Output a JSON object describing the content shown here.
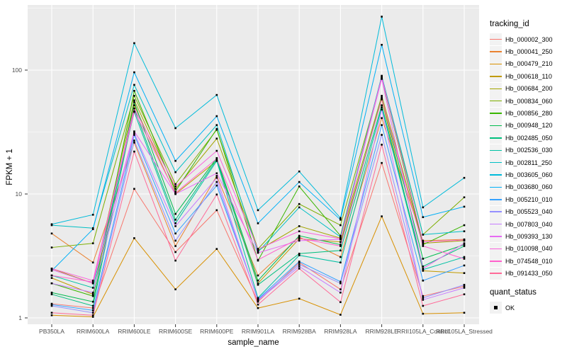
{
  "figure": {
    "background": "#FFFFFF",
    "panel_background": "#EBEBEB",
    "grid_color": "#FFFFFF",
    "axis_text_color": "#4D4D4D",
    "tick_color": "#333333",
    "legend_key_fill": "#F2F2F2"
  },
  "chart_data": {
    "type": "line",
    "title": "",
    "xlabel": "sample_name",
    "ylabel": "FPKM + 1",
    "y_scale": "log10",
    "y_ticks": [
      {
        "label": "1",
        "log10": 0
      },
      {
        "label": "10",
        "log10": 1
      },
      {
        "label": "100",
        "log10": 2
      }
    ],
    "y_minor_log10": [
      0.5,
      1.5,
      2.5
    ],
    "ylim_log10": [
      -0.051,
      2.503
    ],
    "grid": "major-and-minor",
    "legend_position": "right",
    "marker": {
      "shape": "square",
      "color": "#000000",
      "size": 2.6
    },
    "categories": [
      "PB350LA",
      "RRIM600LA",
      "RRIM600LE",
      "RRIM600SE",
      "RRIM600PE",
      "RRIM901LA",
      "RRIM928BA",
      "RRIM928LA",
      "RRIM928LE",
      "RRII105LA_Control",
      "RRII105LA_Stressed"
    ],
    "series": [
      {
        "name": "Hb_000002_300",
        "color": "#F8766D",
        "values": [
          1.3,
          1.2,
          11,
          3.4,
          7.4,
          1.35,
          2.8,
          1.7,
          17.8,
          1.5,
          1.8
        ]
      },
      {
        "name": "Hb_000041_250",
        "color": "#EA8331",
        "values": [
          4.8,
          2.8,
          26,
          3.8,
          14,
          2.2,
          4.5,
          3.1,
          41,
          4.2,
          4.3
        ]
      },
      {
        "name": "Hb_000479_210",
        "color": "#D89000",
        "values": [
          1.05,
          1.02,
          4.4,
          1.7,
          3.6,
          1.2,
          1.43,
          1.06,
          6.6,
          1.08,
          1.1
        ]
      },
      {
        "name": "Hb_000618_110",
        "color": "#C09B00",
        "values": [
          2.1,
          1.55,
          52,
          10,
          18.5,
          1.9,
          4.35,
          4.1,
          58,
          2.4,
          2.3
        ]
      },
      {
        "name": "Hb_000684_200",
        "color": "#A3A500",
        "values": [
          2.5,
          1.9,
          57,
          11,
          28,
          3.5,
          5.5,
          4.4,
          62,
          4.0,
          4.2
        ]
      },
      {
        "name": "Hb_000834_060",
        "color": "#7CAE00",
        "values": [
          3.7,
          4.0,
          62,
          12,
          33,
          3.6,
          8.3,
          5.6,
          85,
          4.7,
          9.4
        ]
      },
      {
        "name": "Hb_000856_280",
        "color": "#39B600",
        "values": [
          1.9,
          1.5,
          68,
          10.5,
          33.5,
          2.9,
          11.5,
          4.6,
          87,
          3.9,
          5.6
        ]
      },
      {
        "name": "Hb_000948_120",
        "color": "#00BB4E",
        "values": [
          1.6,
          1.35,
          55,
          6.9,
          19.5,
          2.0,
          4.6,
          3.9,
          60,
          3.0,
          3.9
        ]
      },
      {
        "name": "Hb_002485_050",
        "color": "#00BF7D",
        "values": [
          1.55,
          1.25,
          49,
          6.2,
          19,
          1.85,
          3.3,
          3.5,
          52,
          2.6,
          3.8
        ]
      },
      {
        "name": "Hb_002536_030",
        "color": "#00C1A3",
        "values": [
          2.2,
          1.75,
          46,
          5.8,
          18.5,
          1.45,
          3.2,
          2.8,
          50,
          2.45,
          3.1
        ]
      },
      {
        "name": "Hb_002811_250",
        "color": "#00BFC4",
        "values": [
          5.6,
          5.3,
          76,
          15,
          36,
          3.4,
          7.8,
          4.5,
          90,
          4.7,
          5.0
        ]
      },
      {
        "name": "Hb_003605_060",
        "color": "#00BBDA",
        "values": [
          5.7,
          6.8,
          165,
          34,
          63,
          7.4,
          15.2,
          6.4,
          270,
          7.8,
          13.5
        ]
      },
      {
        "name": "Hb_003680_060",
        "color": "#00B0F6",
        "values": [
          2.4,
          5.2,
          96,
          18.5,
          42.5,
          5.8,
          12.5,
          6.2,
          160,
          6.5,
          7.9
        ]
      },
      {
        "name": "Hb_005210_010",
        "color": "#35A2FF",
        "values": [
          1.28,
          1.15,
          30,
          4.8,
          11.7,
          1.42,
          2.85,
          1.96,
          36,
          2.0,
          2.65
        ]
      },
      {
        "name": "Hb_005523_040",
        "color": "#9590FF",
        "values": [
          1.25,
          1.1,
          27,
          4.2,
          12.5,
          1.4,
          2.7,
          1.9,
          30,
          1.45,
          1.85
        ]
      },
      {
        "name": "Hb_007803_040",
        "color": "#C77CFF",
        "values": [
          1.9,
          1.6,
          31,
          5.5,
          13.5,
          1.38,
          2.6,
          1.6,
          48,
          1.4,
          1.75
        ]
      },
      {
        "name": "Hb_009393_130",
        "color": "#E76BF3",
        "values": [
          2.45,
          1.9,
          32,
          10,
          14.7,
          3.35,
          4.2,
          4.3,
          85,
          2.5,
          4.0
        ]
      },
      {
        "name": "Hb_010098_040",
        "color": "#FA62DB",
        "values": [
          2.5,
          2.0,
          49,
          11.5,
          22.3,
          3.6,
          5.0,
          4.35,
          88,
          4.1,
          4.25
        ]
      },
      {
        "name": "Hb_074548_010",
        "color": "#FF61CC",
        "values": [
          2.2,
          1.95,
          46.5,
          10.2,
          19.3,
          2.94,
          4.4,
          3.8,
          59,
          3.8,
          3.0
        ]
      },
      {
        "name": "Hb_091433_050",
        "color": "#FF6A98",
        "values": [
          1.1,
          1.05,
          22,
          2.9,
          9.9,
          1.28,
          2.5,
          1.34,
          25,
          1.25,
          1.55
        ]
      }
    ]
  },
  "legend": {
    "tracking_title": "tracking_id",
    "quant_title": "quant_status",
    "quant_items": [
      {
        "label": "OK"
      }
    ]
  }
}
